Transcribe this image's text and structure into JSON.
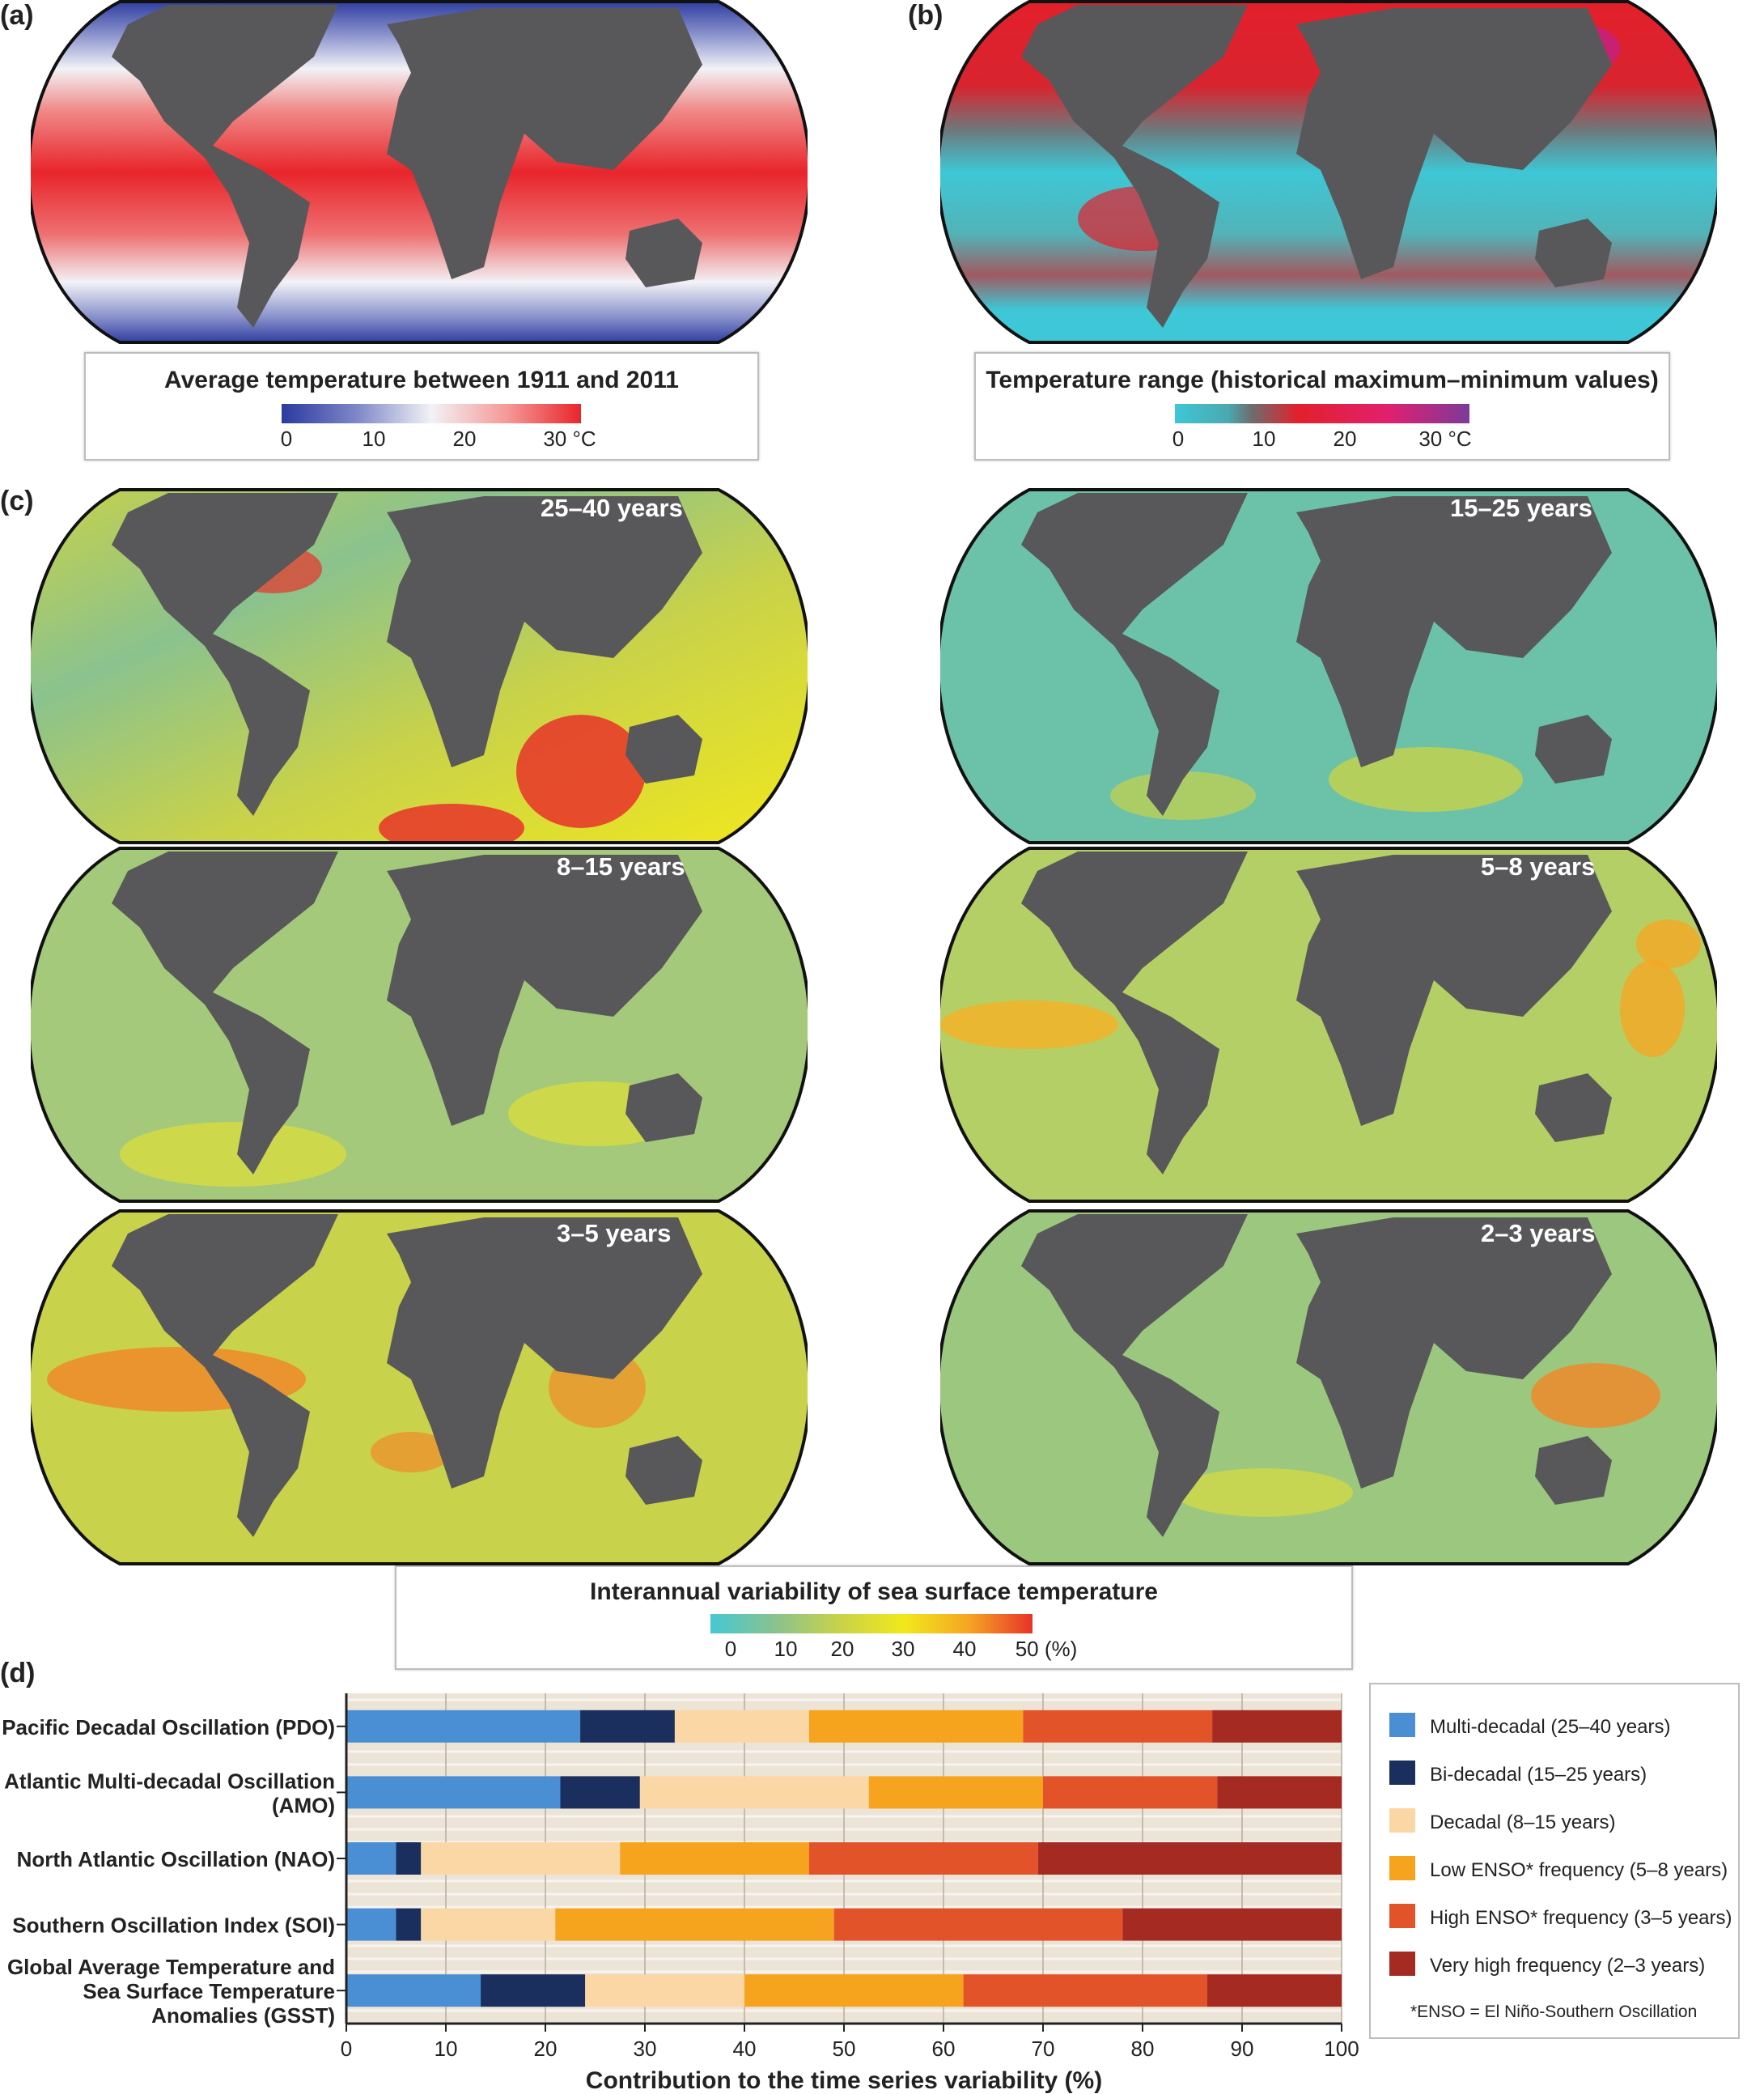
{
  "panels": {
    "a": {
      "letter": "(a)",
      "legend_title": "Average temperature between 1911 and 2011",
      "ticks": [
        "0",
        "10",
        "20",
        "30 °C"
      ],
      "colors": [
        "#2b3a9e",
        "#7e87c8",
        "#f2f2f6",
        "#f59a98",
        "#e8252b"
      ]
    },
    "b": {
      "letter": "(b)",
      "legend_title": "Temperature range (historical maximum–minimum values)",
      "ticks": [
        "0",
        "10",
        "20",
        "30 °C"
      ],
      "colors": [
        "#3ec7d6",
        "#4aa9b0",
        "#6d6d6d",
        "#e3202c",
        "#e1206e",
        "#7d3a9a"
      ]
    },
    "c": {
      "letter": "(c)",
      "map_labels": [
        "25–40 years",
        "15–25 years",
        "8–15 years",
        "5–8 years",
        "3–5 years",
        "2–3 years"
      ],
      "legend_title": "Interannual variability of sea surface temperature",
      "ticks": [
        "0",
        "10",
        "20",
        "30",
        "40",
        "50 (%)"
      ],
      "colors": [
        "#44c8d5",
        "#8ac28e",
        "#c8d24a",
        "#f1e81c",
        "#f6a623",
        "#e8332a"
      ]
    },
    "d": {
      "letter": "(d)"
    }
  },
  "map_colors": {
    "land": "#58585a",
    "outline": "#111111"
  },
  "chart_data": {
    "type": "bar",
    "orientation": "horizontal",
    "stacked": true,
    "categories": [
      "Pacific Decadal Oscillation (PDO)",
      "Atlantic Multi-decadal Oscillation (AMO)",
      "North Atlantic Oscillation (NAO)",
      "Southern Oscillation Index (SOI)",
      "Global Average Temperature and Sea Surface Temperature Anomalies (GSST)"
    ],
    "category_lines": [
      [
        "Pacific Decadal Oscillation (PDO)"
      ],
      [
        "Atlantic Multi-decadal Oscillation",
        "(AMO)"
      ],
      [
        "North Atlantic Oscillation (NAO)"
      ],
      [
        "Southern Oscillation Index (SOI)"
      ],
      [
        "Global Average Temperature and",
        "Sea Surface Temperature",
        "Anomalies (GSST)"
      ]
    ],
    "series": [
      {
        "name": "Multi-decadal (25–40 years)",
        "color": "#4a8fd4",
        "values": [
          23.5,
          21.5,
          5,
          5,
          13.5
        ]
      },
      {
        "name": "Bi-decadal (15–25 years)",
        "color": "#1a2f5e",
        "values": [
          9.5,
          8,
          2.5,
          2.5,
          10.5
        ]
      },
      {
        "name": "Decadal (8–15 years)",
        "color": "#fcd7a6",
        "values": [
          13.5,
          23,
          20,
          13.5,
          16
        ]
      },
      {
        "name": "Low ENSO* frequency (5–8 years)",
        "color": "#f6a31e",
        "values": [
          21.5,
          17.5,
          19,
          28,
          22
        ]
      },
      {
        "name": "High ENSO* frequency (3–5 years)",
        "color": "#e3532a",
        "values": [
          19,
          17.5,
          23,
          29,
          24.5
        ]
      },
      {
        "name": "Very high frequency (2–3 years)",
        "color": "#a52a22",
        "values": [
          13,
          12.5,
          30.5,
          22,
          13.5
        ]
      }
    ],
    "xlabel": "Contribution to the time series variability (%)",
    "xlim": [
      0,
      100
    ],
    "xticks": [
      "0",
      "10",
      "20",
      "30",
      "40",
      "50",
      "60",
      "70",
      "80",
      "90",
      "100"
    ],
    "legend_note": "*ENSO = El Niño-Southern Oscillation",
    "legend_position": "right",
    "grid": true,
    "plot_background": "#ede4d8"
  }
}
